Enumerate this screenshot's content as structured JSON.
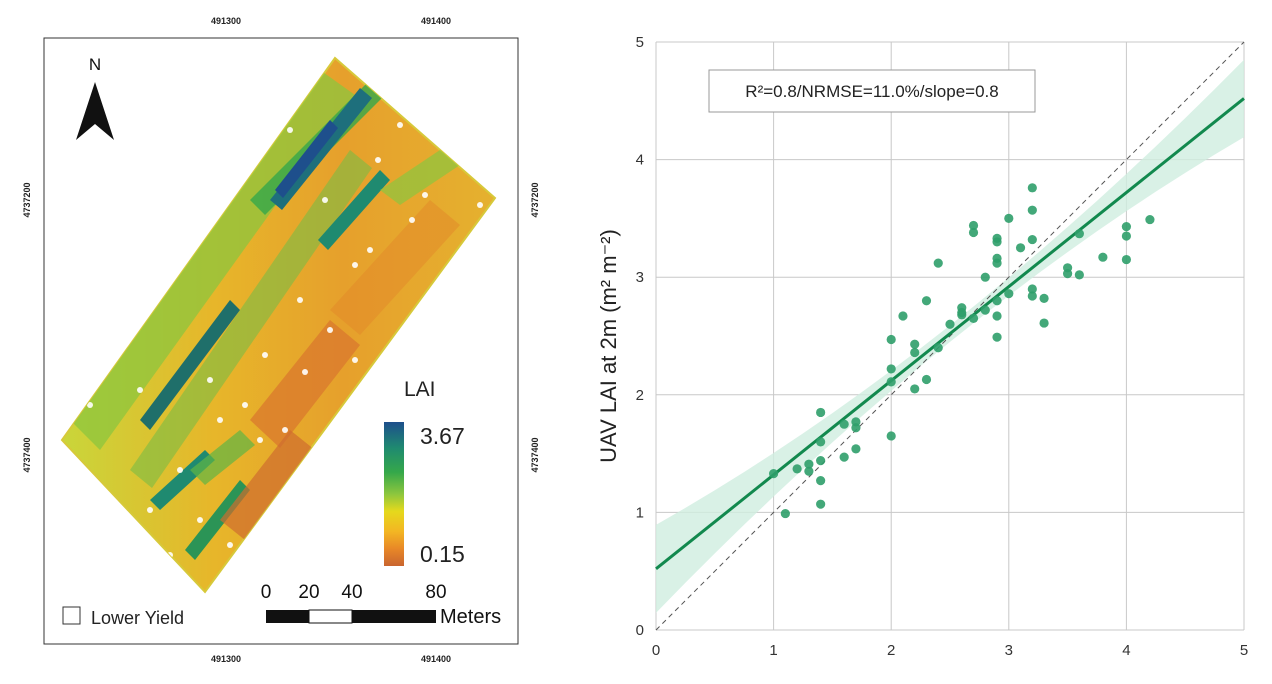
{
  "map": {
    "top_coords": [
      "491300",
      "491400"
    ],
    "bottom_coords": [
      "491300",
      "491400"
    ],
    "left_coords": [
      "4737200",
      "4737400"
    ],
    "right_coords": [
      "4737200",
      "4737400"
    ],
    "north_label": "N",
    "legend": {
      "title": "LAI",
      "max": "3.67",
      "min": "0.15",
      "colors": [
        "#1e4f8c",
        "#1f8a70",
        "#35a84a",
        "#8cc63e",
        "#e5d91c",
        "#f3b623",
        "#e88827",
        "#c9652f"
      ]
    },
    "scale": {
      "labels": [
        "0",
        "20",
        "40",
        "80"
      ],
      "unit": "Meters"
    },
    "lower_yield_label": "Lower Yield"
  },
  "chart_data": {
    "type": "scatter",
    "xlim": [
      0,
      5
    ],
    "ylim": [
      0,
      5
    ],
    "x_ticks": [
      "0",
      "1",
      "2",
      "3",
      "4",
      "5"
    ],
    "y_ticks": [
      "0",
      "1",
      "2",
      "3",
      "4",
      "5"
    ],
    "xlabel": "",
    "ylabel": "UAV LAI at 2m (m² m⁻²)",
    "annotation": "R²=0.8/NRMSE=11.0%/slope=0.8",
    "grid": true,
    "colors": {
      "points": "#2f9e6a",
      "fit": "#12894e",
      "band": "#cfeee0",
      "identity": "#555555"
    },
    "fit_line": {
      "intercept": 0.52,
      "slope": 0.8
    },
    "identity_line": true,
    "points": [
      [
        1.0,
        1.33
      ],
      [
        1.1,
        0.99
      ],
      [
        1.2,
        1.37
      ],
      [
        1.3,
        1.35
      ],
      [
        1.3,
        1.41
      ],
      [
        1.4,
        1.85
      ],
      [
        1.4,
        1.6
      ],
      [
        1.4,
        1.44
      ],
      [
        1.4,
        1.27
      ],
      [
        1.4,
        1.07
      ],
      [
        1.6,
        1.75
      ],
      [
        1.6,
        1.47
      ],
      [
        1.7,
        1.77
      ],
      [
        1.7,
        1.72
      ],
      [
        1.7,
        1.54
      ],
      [
        2.0,
        2.47
      ],
      [
        2.0,
        2.22
      ],
      [
        2.0,
        2.11
      ],
      [
        2.0,
        1.65
      ],
      [
        2.1,
        2.67
      ],
      [
        2.2,
        2.43
      ],
      [
        2.2,
        2.36
      ],
      [
        2.2,
        2.05
      ],
      [
        2.3,
        2.8
      ],
      [
        2.3,
        2.13
      ],
      [
        2.4,
        3.12
      ],
      [
        2.4,
        2.4
      ],
      [
        2.5,
        2.6
      ],
      [
        2.6,
        2.74
      ],
      [
        2.6,
        2.7
      ],
      [
        2.6,
        2.68
      ],
      [
        2.7,
        3.44
      ],
      [
        2.7,
        3.38
      ],
      [
        2.7,
        2.65
      ],
      [
        2.8,
        3.0
      ],
      [
        2.8,
        2.72
      ],
      [
        2.9,
        3.33
      ],
      [
        2.9,
        3.3
      ],
      [
        2.9,
        3.16
      ],
      [
        2.9,
        3.12
      ],
      [
        2.9,
        2.8
      ],
      [
        2.9,
        2.67
      ],
      [
        2.9,
        2.49
      ],
      [
        3.0,
        3.5
      ],
      [
        3.0,
        2.86
      ],
      [
        3.1,
        3.25
      ],
      [
        3.2,
        3.76
      ],
      [
        3.2,
        3.57
      ],
      [
        3.2,
        3.32
      ],
      [
        3.2,
        2.9
      ],
      [
        3.2,
        2.84
      ],
      [
        3.3,
        2.82
      ],
      [
        3.3,
        2.61
      ],
      [
        3.5,
        3.08
      ],
      [
        3.5,
        3.03
      ],
      [
        3.6,
        3.37
      ],
      [
        3.6,
        3.02
      ],
      [
        3.8,
        3.17
      ],
      [
        4.0,
        3.43
      ],
      [
        4.0,
        3.35
      ],
      [
        4.0,
        3.15
      ],
      [
        4.2,
        3.49
      ]
    ]
  }
}
